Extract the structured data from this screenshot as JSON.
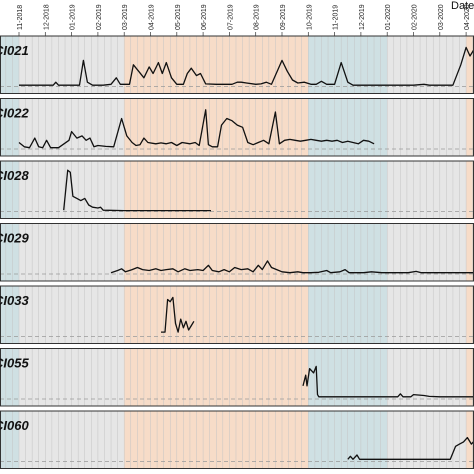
{
  "chart_data": {
    "type": "line",
    "axis_title": "Date",
    "x_ticks": [
      "11-2018",
      "12-2018",
      "01-2019",
      "02-2019",
      "03-2019",
      "04-2019",
      "05-2019",
      "06-2019",
      "07-2019",
      "08-2019",
      "09-2019",
      "10-2019",
      "11-2019",
      "12-2019",
      "01-2020",
      "02-2020",
      "03-2020",
      "04-2020",
      "05-2020"
    ],
    "season_bands": [
      {
        "season": "winter",
        "from": "10-2018",
        "to": "11-2018",
        "color": "#cfe0e3"
      },
      {
        "season": "transition",
        "from": "11-2018",
        "to": "03-2019",
        "color": "#e6e6e6"
      },
      {
        "season": "summer",
        "from": "03-2019",
        "to": "10-2019",
        "color": "#f7dcc8"
      },
      {
        "season": "winter",
        "from": "10-2019",
        "to": "01-2020",
        "color": "#cfe0e3"
      },
      {
        "season": "transition",
        "from": "01-2020",
        "to": "04-2020",
        "color": "#e6e6e6"
      },
      {
        "season": "summer",
        "from": "04-2020",
        "to": "06-2020",
        "color": "#f7dcc8"
      }
    ],
    "panels": [
      {
        "label": "CI021",
        "points": [
          [
            0,
            0.03
          ],
          [
            1.0,
            0.03
          ],
          [
            1.3,
            0.03
          ],
          [
            1.4,
            0.1
          ],
          [
            1.5,
            0.03
          ],
          [
            2.3,
            0.03
          ],
          [
            2.45,
            0.6
          ],
          [
            2.6,
            0.1
          ],
          [
            2.8,
            0.03
          ],
          [
            3.2,
            0.03
          ],
          [
            3.5,
            0.05
          ],
          [
            3.7,
            0.2
          ],
          [
            3.85,
            0.05
          ],
          [
            4.2,
            0.05
          ],
          [
            4.35,
            0.5
          ],
          [
            4.55,
            0.35
          ],
          [
            4.75,
            0.2
          ],
          [
            4.95,
            0.45
          ],
          [
            5.1,
            0.3
          ],
          [
            5.3,
            0.55
          ],
          [
            5.45,
            0.3
          ],
          [
            5.6,
            0.55
          ],
          [
            5.8,
            0.2
          ],
          [
            6.0,
            0.05
          ],
          [
            6.25,
            0.05
          ],
          [
            6.4,
            0.3
          ],
          [
            6.55,
            0.42
          ],
          [
            6.75,
            0.25
          ],
          [
            6.9,
            0.3
          ],
          [
            7.1,
            0.06
          ],
          [
            7.5,
            0.05
          ],
          [
            7.8,
            0.05
          ],
          [
            8.1,
            0.05
          ],
          [
            8.3,
            0.1
          ],
          [
            8.45,
            0.1
          ],
          [
            8.65,
            0.08
          ],
          [
            9.0,
            0.05
          ],
          [
            9.2,
            0.06
          ],
          [
            9.4,
            0.1
          ],
          [
            9.6,
            0.05
          ],
          [
            10.0,
            0.6
          ],
          [
            10.2,
            0.35
          ],
          [
            10.4,
            0.15
          ],
          [
            10.6,
            0.08
          ],
          [
            10.85,
            0.1
          ],
          [
            11.1,
            0.05
          ],
          [
            11.3,
            0.05
          ],
          [
            11.5,
            0.12
          ],
          [
            11.7,
            0.05
          ],
          [
            12.0,
            0.05
          ],
          [
            12.25,
            0.55
          ],
          [
            12.5,
            0.1
          ],
          [
            12.7,
            0.03
          ],
          [
            13.5,
            0.03
          ],
          [
            14.0,
            0.03
          ],
          [
            15.0,
            0.03
          ],
          [
            15.4,
            0.05
          ],
          [
            15.6,
            0.03
          ],
          [
            16.0,
            0.03
          ],
          [
            16.5,
            0.03
          ],
          [
            16.8,
            0.5
          ],
          [
            17.0,
            0.9
          ],
          [
            17.15,
            0.7
          ],
          [
            17.3,
            0.85
          ],
          [
            17.45,
            0.5
          ],
          [
            17.6,
            0.1
          ],
          [
            17.8,
            0.03
          ],
          [
            18.5,
            0.03
          ]
        ]
      },
      {
        "label": "CI022",
        "points": [
          [
            0,
            0.15
          ],
          [
            0.2,
            0.05
          ],
          [
            0.4,
            0.03
          ],
          [
            0.6,
            0.25
          ],
          [
            0.75,
            0.05
          ],
          [
            0.9,
            0.03
          ],
          [
            1.05,
            0.2
          ],
          [
            1.2,
            0.03
          ],
          [
            1.5,
            0.03
          ],
          [
            1.9,
            0.2
          ],
          [
            2.0,
            0.4
          ],
          [
            2.2,
            0.25
          ],
          [
            2.4,
            0.3
          ],
          [
            2.55,
            0.2
          ],
          [
            2.7,
            0.25
          ],
          [
            2.85,
            0.05
          ],
          [
            3.0,
            0.08
          ],
          [
            3.3,
            0.06
          ],
          [
            3.6,
            0.05
          ],
          [
            3.9,
            0.7
          ],
          [
            4.1,
            0.3
          ],
          [
            4.3,
            0.15
          ],
          [
            4.45,
            0.08
          ],
          [
            4.6,
            0.1
          ],
          [
            4.75,
            0.25
          ],
          [
            4.9,
            0.15
          ],
          [
            5.2,
            0.12
          ],
          [
            5.4,
            0.14
          ],
          [
            5.6,
            0.12
          ],
          [
            5.8,
            0.15
          ],
          [
            6.0,
            0.08
          ],
          [
            6.2,
            0.15
          ],
          [
            6.5,
            0.12
          ],
          [
            6.7,
            0.15
          ],
          [
            6.85,
            0.08
          ],
          [
            7.1,
            0.9
          ],
          [
            7.2,
            0.1
          ],
          [
            7.35,
            0.05
          ],
          [
            7.55,
            0.05
          ],
          [
            7.7,
            0.55
          ],
          [
            7.9,
            0.7
          ],
          [
            8.1,
            0.65
          ],
          [
            8.3,
            0.55
          ],
          [
            8.5,
            0.5
          ],
          [
            8.7,
            0.15
          ],
          [
            8.9,
            0.1
          ],
          [
            9.1,
            0.15
          ],
          [
            9.3,
            0.2
          ],
          [
            9.5,
            0.12
          ],
          [
            9.75,
            0.85
          ],
          [
            9.9,
            0.12
          ],
          [
            10.1,
            0.2
          ],
          [
            10.3,
            0.22
          ],
          [
            10.5,
            0.2
          ],
          [
            10.7,
            0.18
          ],
          [
            10.9,
            0.2
          ],
          [
            11.1,
            0.22
          ],
          [
            11.3,
            0.2
          ],
          [
            11.5,
            0.18
          ],
          [
            11.7,
            0.2
          ],
          [
            11.9,
            0.18
          ],
          [
            12.1,
            0.2
          ],
          [
            12.3,
            0.15
          ],
          [
            12.5,
            0.18
          ],
          [
            12.7,
            0.15
          ],
          [
            12.9,
            0.12
          ],
          [
            13.1,
            0.2
          ],
          [
            13.3,
            0.18
          ],
          [
            13.5,
            0.12
          ]
        ]
      },
      {
        "label": "CI028",
        "points": [
          [
            1.7,
            0.03
          ],
          [
            1.85,
            0.95
          ],
          [
            1.95,
            0.9
          ],
          [
            2.05,
            0.35
          ],
          [
            2.2,
            0.3
          ],
          [
            2.35,
            0.25
          ],
          [
            2.5,
            0.3
          ],
          [
            2.65,
            0.15
          ],
          [
            2.8,
            0.1
          ],
          [
            3.0,
            0.08
          ],
          [
            3.1,
            0.1
          ],
          [
            3.2,
            0.03
          ],
          [
            4.0,
            0.02
          ],
          [
            5.0,
            0.02
          ],
          [
            6.0,
            0.02
          ],
          [
            7.0,
            0.02
          ],
          [
            7.3,
            0.02
          ]
        ]
      },
      {
        "label": "CI029",
        "points": [
          [
            3.5,
            0.03
          ],
          [
            3.75,
            0.08
          ],
          [
            3.9,
            0.12
          ],
          [
            4.05,
            0.05
          ],
          [
            4.3,
            0.1
          ],
          [
            4.5,
            0.15
          ],
          [
            4.7,
            0.1
          ],
          [
            4.95,
            0.08
          ],
          [
            5.2,
            0.12
          ],
          [
            5.4,
            0.08
          ],
          [
            5.6,
            0.1
          ],
          [
            5.85,
            0.12
          ],
          [
            6.05,
            0.05
          ],
          [
            6.3,
            0.12
          ],
          [
            6.5,
            0.08
          ],
          [
            6.8,
            0.1
          ],
          [
            7.0,
            0.08
          ],
          [
            7.2,
            0.2
          ],
          [
            7.35,
            0.08
          ],
          [
            7.6,
            0.05
          ],
          [
            7.8,
            0.1
          ],
          [
            8.0,
            0.05
          ],
          [
            8.2,
            0.15
          ],
          [
            8.45,
            0.1
          ],
          [
            8.7,
            0.12
          ],
          [
            8.9,
            0.05
          ],
          [
            9.1,
            0.2
          ],
          [
            9.25,
            0.1
          ],
          [
            9.45,
            0.3
          ],
          [
            9.6,
            0.15
          ],
          [
            9.8,
            0.1
          ],
          [
            10.0,
            0.05
          ],
          [
            10.3,
            0.03
          ],
          [
            10.6,
            0.05
          ],
          [
            10.8,
            0.03
          ],
          [
            11.1,
            0.03
          ],
          [
            11.4,
            0.04
          ],
          [
            11.7,
            0.08
          ],
          [
            11.85,
            0.03
          ],
          [
            12.2,
            0.05
          ],
          [
            12.4,
            0.1
          ],
          [
            12.55,
            0.03
          ],
          [
            12.8,
            0.03
          ],
          [
            13.1,
            0.03
          ],
          [
            13.4,
            0.05
          ],
          [
            13.8,
            0.03
          ],
          [
            14.1,
            0.03
          ],
          [
            14.4,
            0.03
          ],
          [
            14.8,
            0.03
          ],
          [
            15.1,
            0.06
          ],
          [
            15.3,
            0.03
          ],
          [
            15.7,
            0.03
          ],
          [
            16.0,
            0.03
          ],
          [
            16.4,
            0.03
          ],
          [
            16.8,
            0.03
          ],
          [
            17.2,
            0.03
          ],
          [
            17.6,
            0.03
          ],
          [
            17.85,
            0.03
          ],
          [
            17.95,
            0.95
          ],
          [
            18.05,
            0.1
          ],
          [
            18.2,
            0.03
          ],
          [
            18.5,
            0.03
          ]
        ]
      },
      {
        "label": "CI033",
        "points": [
          [
            5.4,
            0.1
          ],
          [
            5.55,
            0.1
          ],
          [
            5.65,
            0.85
          ],
          [
            5.75,
            0.8
          ],
          [
            5.85,
            0.9
          ],
          [
            5.95,
            0.3
          ],
          [
            6.05,
            0.1
          ],
          [
            6.15,
            0.4
          ],
          [
            6.25,
            0.2
          ],
          [
            6.35,
            0.35
          ],
          [
            6.45,
            0.15
          ],
          [
            6.55,
            0.25
          ],
          [
            6.65,
            0.35
          ]
        ]
      },
      {
        "label": "CI055",
        "points": [
          [
            10.8,
            0.3
          ],
          [
            10.9,
            0.55
          ],
          [
            10.95,
            0.3
          ],
          [
            11.05,
            0.7
          ],
          [
            11.2,
            0.6
          ],
          [
            11.3,
            0.75
          ],
          [
            11.35,
            0.1
          ],
          [
            11.4,
            0.05
          ],
          [
            12.0,
            0.05
          ],
          [
            13.0,
            0.05
          ],
          [
            14.0,
            0.05
          ],
          [
            14.4,
            0.05
          ],
          [
            14.5,
            0.12
          ],
          [
            14.6,
            0.05
          ],
          [
            14.9,
            0.05
          ],
          [
            15.0,
            0.1
          ],
          [
            15.4,
            0.08
          ],
          [
            15.6,
            0.06
          ],
          [
            16.0,
            0.05
          ],
          [
            16.5,
            0.05
          ],
          [
            17.0,
            0.05
          ],
          [
            17.5,
            0.05
          ],
          [
            18.0,
            0.05
          ],
          [
            18.5,
            0.05
          ]
        ]
      },
      {
        "label": "CI060",
        "points": [
          [
            12.5,
            0.05
          ],
          [
            12.6,
            0.12
          ],
          [
            12.7,
            0.05
          ],
          [
            12.85,
            0.15
          ],
          [
            12.95,
            0.05
          ],
          [
            13.1,
            0.05
          ],
          [
            13.3,
            0.05
          ],
          [
            14.0,
            0.05
          ],
          [
            15.0,
            0.05
          ],
          [
            16.0,
            0.05
          ],
          [
            16.4,
            0.05
          ],
          [
            16.6,
            0.35
          ],
          [
            16.75,
            0.4
          ],
          [
            16.9,
            0.45
          ],
          [
            17.05,
            0.55
          ],
          [
            17.2,
            0.4
          ],
          [
            17.35,
            0.5
          ],
          [
            17.5,
            0.6
          ],
          [
            17.65,
            0.2
          ],
          [
            17.8,
            0.15
          ],
          [
            17.95,
            0.3
          ],
          [
            18.05,
            0.1
          ],
          [
            18.2,
            0.05
          ]
        ]
      }
    ]
  }
}
